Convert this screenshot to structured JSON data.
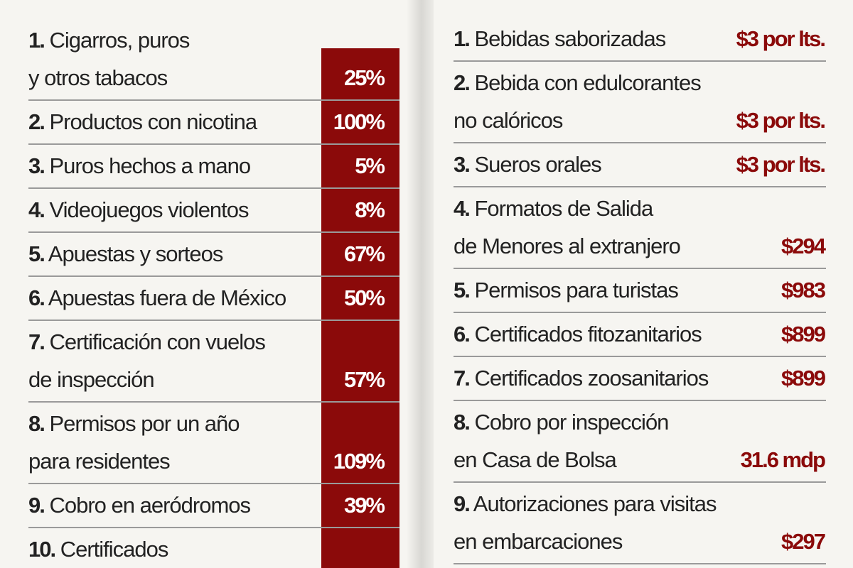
{
  "left": {
    "rows": [
      {
        "num": "1.",
        "lines": [
          "Cigarros, puros",
          "y otros tabacos"
        ],
        "value": "25%"
      },
      {
        "num": "2.",
        "lines": [
          "Productos con nicotina"
        ],
        "value": "100%"
      },
      {
        "num": "3.",
        "lines": [
          "Puros hechos a mano"
        ],
        "value": "5%"
      },
      {
        "num": "4.",
        "lines": [
          "Videojuegos violentos"
        ],
        "value": "8%"
      },
      {
        "num": "5.",
        "lines": [
          "Apuestas y sorteos"
        ],
        "value": "67%"
      },
      {
        "num": "6.",
        "lines": [
          "Apuestas fuera de México"
        ],
        "value": "50%"
      },
      {
        "num": "7.",
        "lines": [
          "Certificación con vuelos",
          "de inspección"
        ],
        "value": "57%"
      },
      {
        "num": "8.",
        "lines": [
          "Permisos por un año",
          "para residentes"
        ],
        "value": "109%"
      },
      {
        "num": "9.",
        "lines": [
          "Cobro en aeródromos"
        ],
        "value": "39%"
      },
      {
        "num": "10.",
        "lines": [
          "Certificados"
        ]
      }
    ]
  },
  "right": {
    "rows": [
      {
        "num": "1.",
        "lines": [
          "Bebidas saborizadas"
        ],
        "value": "$3 por lts."
      },
      {
        "num": "2.",
        "lines": [
          "Bebida con edulcorantes",
          "no calóricos"
        ],
        "value": "$3 por lts."
      },
      {
        "num": "3.",
        "lines": [
          "Sueros orales"
        ],
        "value": "$3 por lts."
      },
      {
        "num": "4.",
        "lines": [
          "Formatos de Salida",
          "de Menores al extranjero"
        ],
        "value": "$294"
      },
      {
        "num": "5.",
        "lines": [
          "Permisos para turistas"
        ],
        "value": "$983"
      },
      {
        "num": "6.",
        "lines": [
          "Certificados fitozanitarios"
        ],
        "value": "$899"
      },
      {
        "num": "7.",
        "lines": [
          "Certificados zoosanitarios"
        ],
        "value": "$899"
      },
      {
        "num": "8.",
        "lines": [
          "Cobro por inspección",
          "en Casa de Bolsa"
        ],
        "value": "31.6 mdp"
      },
      {
        "num": "9.",
        "lines": [
          "Autorizaciones para visitas",
          "en embarcaciones"
        ],
        "value": "$297"
      }
    ]
  }
}
